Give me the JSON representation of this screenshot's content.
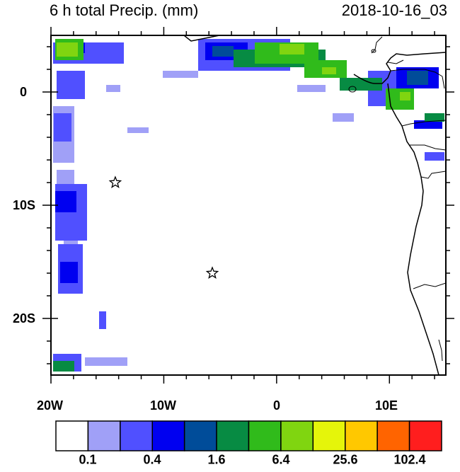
{
  "header": {
    "title": "6 h total Precip. (mm)",
    "timestamp": "2018-10-16_03"
  },
  "axes": {
    "lat_labels": [
      "0",
      "10S",
      "20S"
    ],
    "lon_labels": [
      "20W",
      "10W",
      "0",
      "10E"
    ]
  },
  "markers": [
    {
      "name": "star-marker",
      "lon": -14.3,
      "lat": -8.0
    },
    {
      "name": "star-marker",
      "lon": -5.7,
      "lat": -16.0
    }
  ],
  "colorbar": {
    "colors": [
      "#ffffff",
      "#a0a0f7",
      "#5050ff",
      "#0000f0",
      "#004c99",
      "#078b43",
      "#30bb1b",
      "#80d510",
      "#e5f50a",
      "#ffc800",
      "#ff6400",
      "#ff1e1e"
    ],
    "labels": [
      "0.1",
      "0.4",
      "1.6",
      "6.4",
      "25.6",
      "102.4"
    ]
  }
}
